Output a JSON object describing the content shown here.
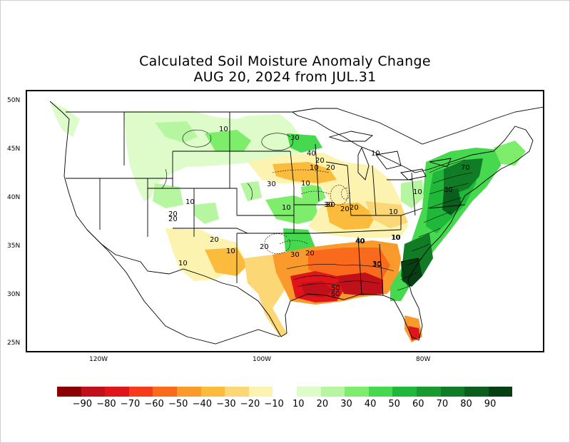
{
  "title": {
    "line1": "Calculated Soil Moisture Anomaly Change",
    "line2": "AUG 20, 2024 from JUL.31"
  },
  "axes": {
    "lat_labels": [
      "50N",
      "45N",
      "40N",
      "35N",
      "30N",
      "25N"
    ],
    "lon_labels": [
      "120W",
      "100W",
      "80W"
    ]
  },
  "contour_labels": [
    "10",
    "30",
    "40",
    "20",
    "10",
    "30",
    "20",
    "10",
    "10",
    "20",
    "30",
    "10",
    "30",
    "40",
    "20",
    "20",
    "10",
    "20",
    "10",
    "30",
    "10",
    "70",
    "80",
    "10",
    "20",
    "10",
    "10",
    "20",
    "30",
    "20",
    "50",
    "60",
    "40",
    "10",
    "30"
  ],
  "legend": {
    "negative_colors": [
      "#8b0000",
      "#c0101a",
      "#e0151b",
      "#f53b1a",
      "#f96a1c",
      "#fb9a2c",
      "#fbbb3c",
      "#fcd775",
      "#fdf3b0"
    ],
    "positive_colors": [
      "#ddfcc9",
      "#b6f6a1",
      "#7ded6b",
      "#46d94f",
      "#20b83a",
      "#189a30",
      "#107d26",
      "#0a5f1c",
      "#063f12"
    ],
    "negative_labels": [
      "-90",
      "-80",
      "-70",
      "-60",
      "-50",
      "-40",
      "-30",
      "-20",
      "-10"
    ],
    "positive_labels": [
      "10",
      "20",
      "30",
      "40",
      "50",
      "60",
      "70",
      "80",
      "90"
    ]
  }
}
